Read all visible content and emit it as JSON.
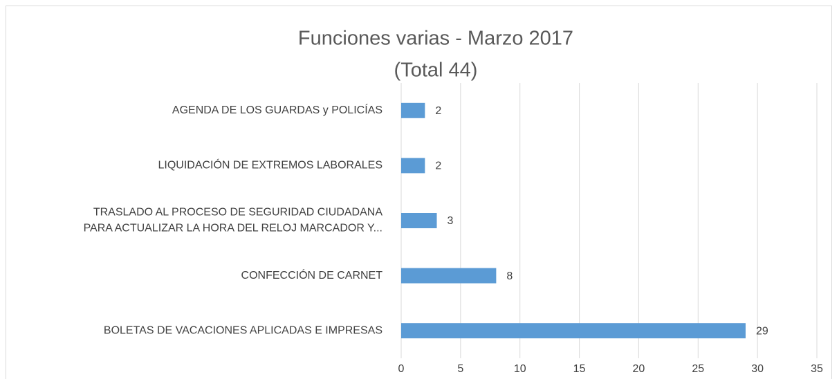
{
  "chart_data": {
    "type": "bar",
    "orientation": "horizontal",
    "title": "Funciones varias - Marzo 2017",
    "subtitle": "(Total 44)",
    "categories": [
      [
        "AGENDA DE LOS GUARDAS y  POLICÍAS"
      ],
      [
        "LIQUIDACIÓN DE EXTREMOS LABORALES"
      ],
      [
        "TRASLADO AL  PROCESO DE SEGURIDAD CIUDADANA",
        "PARA ACTUALIZAR LA HORA DEL RELOJ MARCADOR Y..."
      ],
      [
        "CONFECCIÓN DE CARNET"
      ],
      [
        "BOLETAS DE VACACIONES APLICADAS E IMPRESAS"
      ]
    ],
    "values": [
      2,
      2,
      3,
      8,
      29
    ],
    "color": "#5b9bd5",
    "xlim": [
      0,
      35
    ],
    "xticks": [
      0,
      5,
      10,
      15,
      20,
      25,
      30,
      35
    ],
    "grid": true
  }
}
